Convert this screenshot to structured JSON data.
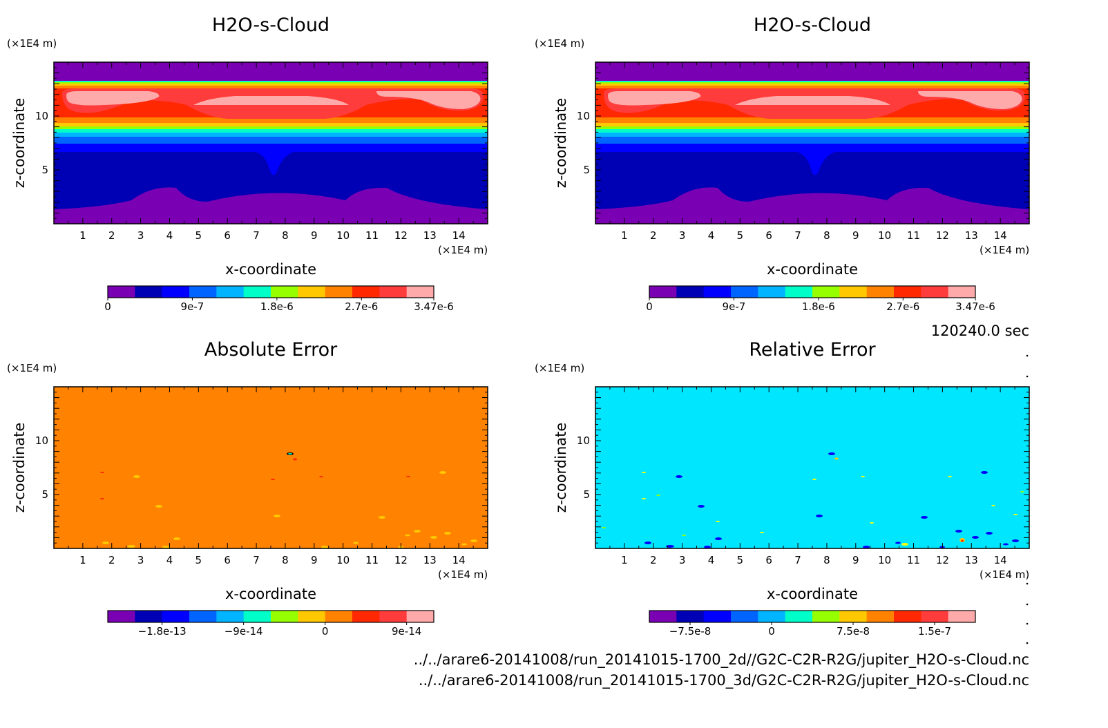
{
  "chart_data": [
    {
      "type": "heatmap",
      "title": "H2O-s-Cloud",
      "xlabel": "x-coordinate",
      "ylabel": "z-coordinate",
      "x_unit": "(×1E4 m)",
      "y_unit": "(×1E4 m)",
      "xlim": [
        0,
        15
      ],
      "ylim": [
        0,
        15
      ],
      "x_ticks": [
        "1",
        "2",
        "3",
        "4",
        "5",
        "6",
        "7",
        "8",
        "9",
        "10",
        "11",
        "12",
        "13",
        "14"
      ],
      "y_ticks": [
        "5",
        "10"
      ],
      "colorbar": {
        "levels": 12,
        "range": [
          0,
          3.47e-06
        ],
        "labels": [
          "0",
          "9e-7",
          "1.8e-6",
          "2.7e-6",
          "3.47e-6"
        ],
        "label_values": [
          0,
          9e-07,
          1.8e-06,
          2.7e-06,
          3.47e-06
        ]
      }
    },
    {
      "type": "heatmap",
      "title": "H2O-s-Cloud",
      "xlabel": "x-coordinate",
      "ylabel": "z-coordinate",
      "x_unit": "(×1E4 m)",
      "y_unit": "(×1E4 m)",
      "xlim": [
        0,
        15
      ],
      "ylim": [
        0,
        15
      ],
      "x_ticks": [
        "1",
        "2",
        "3",
        "4",
        "5",
        "6",
        "7",
        "8",
        "9",
        "10",
        "11",
        "12",
        "13",
        "14"
      ],
      "y_ticks": [
        "5",
        "10"
      ],
      "colorbar": {
        "levels": 12,
        "range": [
          0,
          3.47e-06
        ],
        "labels": [
          "0",
          "9e-7",
          "1.8e-6",
          "2.7e-6",
          "3.47e-6"
        ],
        "label_values": [
          0,
          9e-07,
          1.8e-06,
          2.7e-06,
          3.47e-06
        ]
      }
    },
    {
      "type": "heatmap",
      "title": "Absolute Error",
      "xlabel": "x-coordinate",
      "ylabel": "z-coordinate",
      "x_unit": "(×1E4 m)",
      "y_unit": "(×1E4 m)",
      "xlim": [
        0,
        15
      ],
      "ylim": [
        0,
        15
      ],
      "x_ticks": [
        "1",
        "2",
        "3",
        "4",
        "5",
        "6",
        "7",
        "8",
        "9",
        "10",
        "11",
        "12",
        "13",
        "14"
      ],
      "y_ticks": [
        "5",
        "10"
      ],
      "colorbar": {
        "levels": 12,
        "range": [
          -2.4e-13,
          1.2e-13
        ],
        "labels": [
          "−1.8e-13",
          "−9e-14",
          "0",
          "9e-14"
        ],
        "label_values": [
          -1.8e-13,
          -9e-14,
          0,
          9e-14
        ]
      }
    },
    {
      "type": "heatmap",
      "title": "Relative Error",
      "xlabel": "x-coordinate",
      "ylabel": "z-coordinate",
      "x_unit": "(×1E4 m)",
      "y_unit": "(×1E4 m)",
      "xlim": [
        0,
        15
      ],
      "ylim": [
        0,
        15
      ],
      "x_ticks": [
        "1",
        "2",
        "3",
        "4",
        "5",
        "6",
        "7",
        "8",
        "9",
        "10",
        "11",
        "12",
        "13",
        "14"
      ],
      "y_ticks": [
        "5",
        "10"
      ],
      "colorbar": {
        "levels": 12,
        "range": [
          -1.125e-07,
          1.875e-07
        ],
        "labels": [
          "−7.5e-8",
          "0",
          "7.5e-8",
          "1.5e-7"
        ],
        "label_values": [
          -7.5e-08,
          0,
          7.5e-08,
          1.5e-07
        ]
      }
    }
  ],
  "footer": {
    "time": "120240.0 sec",
    "path_2d": "../../arare6-20141008/run_20141015-1700_2d//G2C-C2R-R2G/jupiter_H2O-s-Cloud.nc",
    "path_3d": "../../arare6-20141008/run_20141015-1700_3d/G2C-C2R-R2G/jupiter_H2O-s-Cloud.nc"
  },
  "colors": {
    "palette": [
      "#7a00b4",
      "#0000b4",
      "#0000ff",
      "#0064ff",
      "#00b4ff",
      "#00ffc8",
      "#96ff00",
      "#ffc800",
      "#ff8200",
      "#ff2800",
      "#ff3c3c",
      "#ffaaaa"
    ],
    "abs_error_background": "#ff8200",
    "rel_error_background": "#00e6ff"
  }
}
